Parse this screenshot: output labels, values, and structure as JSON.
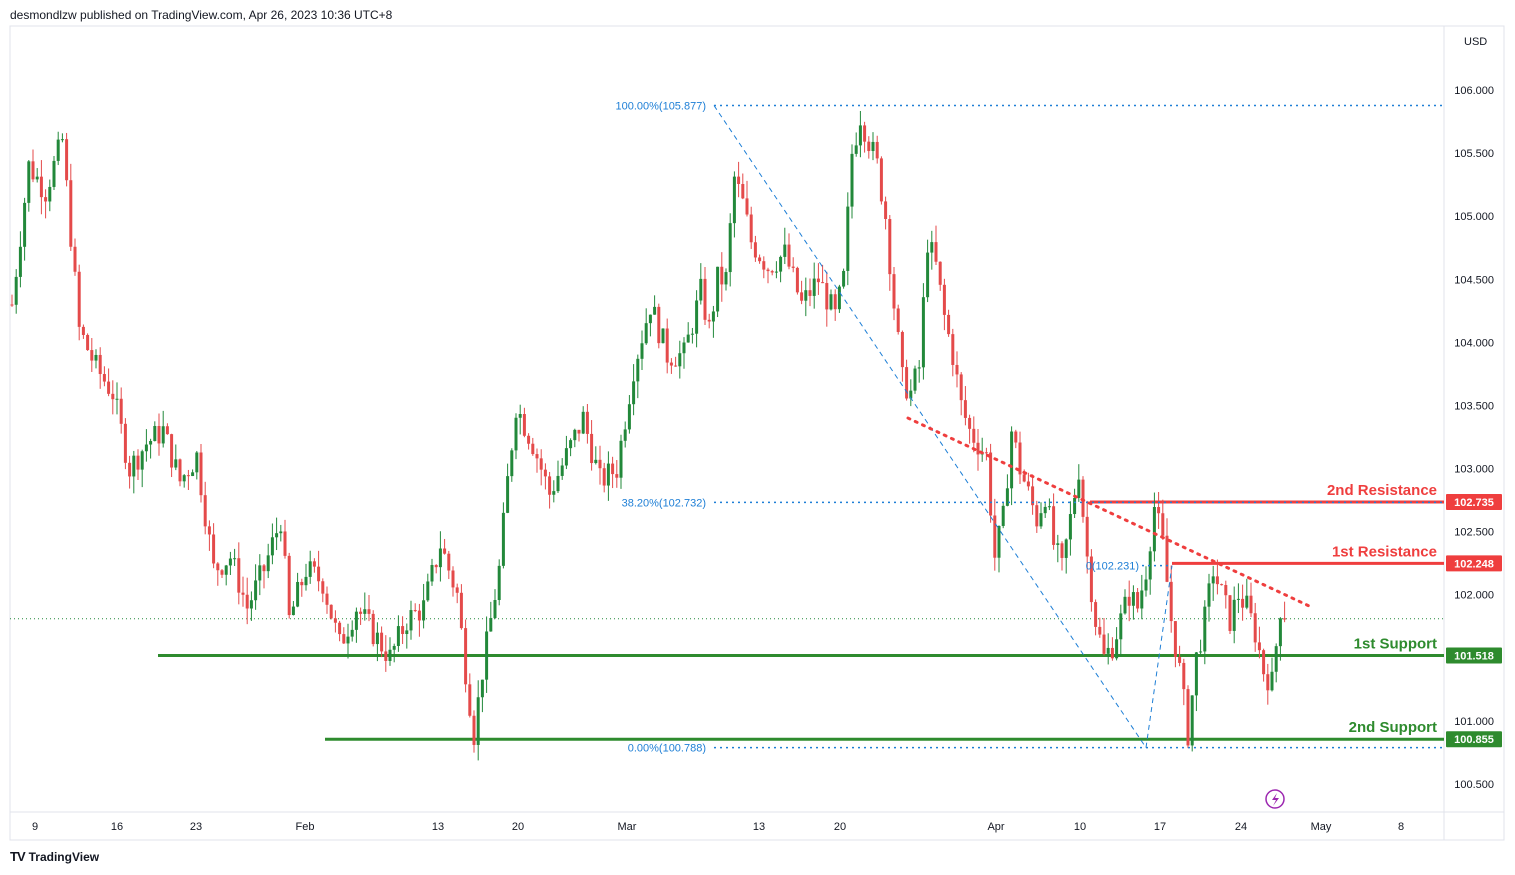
{
  "header": {
    "publisher": "desmondlzw published on TradingView.com, Apr 26, 2023 10:36 UTC+8"
  },
  "footer": {
    "logo_text": "TV",
    "brand": "TradingView"
  },
  "colors": {
    "up": "#22883a",
    "down": "#e44a4a",
    "resistance": "#ef3e3e",
    "support": "#2e8b2e",
    "fib": "#1e7fd6",
    "axis_text": "#131722"
  },
  "chart_data": {
    "type": "candlestick",
    "currency": "USD",
    "ylim": [
      100.25,
      106.4
    ],
    "y_ticks": [
      "106.000",
      "105.500",
      "105.000",
      "104.500",
      "104.000",
      "103.500",
      "103.000",
      "102.500",
      "102.000",
      "101.000",
      "100.500"
    ],
    "x_ticks": [
      "9",
      "16",
      "23",
      "Feb",
      "13",
      "20",
      "Mar",
      "13",
      "20",
      "Apr",
      "10",
      "17",
      "24",
      "May",
      "8"
    ],
    "levels": [
      {
        "label": "2nd Resistance",
        "value": 102.735,
        "value_text": "102.735",
        "kind": "resistance"
      },
      {
        "label": "1st Resistance",
        "value": 102.248,
        "value_text": "102.248",
        "kind": "resistance"
      },
      {
        "label": "1st Support",
        "value": 101.518,
        "value_text": "101.518",
        "kind": "support"
      },
      {
        "label": "2nd Support",
        "value": 100.855,
        "value_text": "100.855",
        "kind": "support"
      }
    ],
    "fib_levels": [
      {
        "label": "100.00%(105.877)",
        "value": 105.877
      },
      {
        "label": "38.20%(102.732)",
        "value": 102.732
      },
      {
        "label": "0(102.231)",
        "value": 102.231
      },
      {
        "label": "0.00%(100.788)",
        "value": 100.788
      }
    ],
    "price_path": [
      [
        0,
        104.3
      ],
      [
        4,
        105.4
      ],
      [
        8,
        105.2
      ],
      [
        12,
        105.6
      ],
      [
        16,
        104.1
      ],
      [
        20,
        103.8
      ],
      [
        24,
        103.6
      ],
      [
        28,
        103.0
      ],
      [
        32,
        103.2
      ],
      [
        36,
        103.3
      ],
      [
        40,
        102.9
      ],
      [
        44,
        103.1
      ],
      [
        48,
        102.2
      ],
      [
        52,
        102.3
      ],
      [
        56,
        101.9
      ],
      [
        60,
        102.2
      ],
      [
        64,
        102.6
      ],
      [
        66,
        101.8
      ],
      [
        70,
        102.2
      ],
      [
        74,
        102.1
      ],
      [
        78,
        101.6
      ],
      [
        82,
        101.9
      ],
      [
        86,
        101.7
      ],
      [
        90,
        101.5
      ],
      [
        94,
        101.8
      ],
      [
        98,
        101.9
      ],
      [
        102,
        102.4
      ],
      [
        106,
        102.0
      ],
      [
        108,
        101.4
      ],
      [
        110,
        100.9
      ],
      [
        112,
        101.4
      ],
      [
        114,
        101.8
      ],
      [
        116,
        102.2
      ],
      [
        118,
        102.9
      ],
      [
        120,
        103.5
      ],
      [
        124,
        103.2
      ],
      [
        128,
        102.8
      ],
      [
        132,
        103.1
      ],
      [
        136,
        103.4
      ],
      [
        140,
        102.9
      ],
      [
        144,
        103.0
      ],
      [
        148,
        103.8
      ],
      [
        152,
        104.3
      ],
      [
        156,
        103.9
      ],
      [
        160,
        103.9
      ],
      [
        164,
        104.4
      ],
      [
        166,
        104.1
      ],
      [
        168,
        104.5
      ],
      [
        170,
        104.5
      ],
      [
        172,
        105.3
      ],
      [
        174,
        105.1
      ],
      [
        176,
        104.8
      ],
      [
        180,
        104.6
      ],
      [
        184,
        104.7
      ],
      [
        188,
        104.3
      ],
      [
        192,
        104.5
      ],
      [
        196,
        104.2
      ],
      [
        198,
        104.5
      ],
      [
        200,
        105.5
      ],
      [
        202,
        105.8
      ],
      [
        204,
        105.6
      ],
      [
        206,
        105.4
      ],
      [
        208,
        105.0
      ],
      [
        210,
        104.3
      ],
      [
        212,
        103.7
      ],
      [
        214,
        103.6
      ],
      [
        216,
        103.8
      ],
      [
        218,
        104.8
      ],
      [
        220,
        104.6
      ],
      [
        222,
        104.2
      ],
      [
        224,
        103.9
      ],
      [
        226,
        103.5
      ],
      [
        228,
        103.3
      ],
      [
        232,
        103.1
      ],
      [
        234,
        102.3
      ],
      [
        236,
        102.6
      ],
      [
        238,
        103.3
      ],
      [
        240,
        103.0
      ],
      [
        242,
        102.8
      ],
      [
        244,
        102.6
      ],
      [
        246,
        102.8
      ],
      [
        248,
        102.4
      ],
      [
        250,
        102.2
      ],
      [
        252,
        102.6
      ],
      [
        254,
        103.0
      ],
      [
        256,
        102.3
      ],
      [
        258,
        101.8
      ],
      [
        260,
        101.5
      ],
      [
        262,
        101.6
      ],
      [
        264,
        101.8
      ],
      [
        266,
        102.0
      ],
      [
        268,
        101.9
      ],
      [
        270,
        102.2
      ],
      [
        272,
        102.7
      ],
      [
        274,
        102.4
      ],
      [
        276,
        101.8
      ],
      [
        278,
        101.4
      ],
      [
        280,
        100.9
      ],
      [
        282,
        101.5
      ],
      [
        284,
        101.8
      ],
      [
        286,
        102.2
      ],
      [
        288,
        102.0
      ],
      [
        290,
        101.8
      ],
      [
        292,
        102.0
      ],
      [
        294,
        101.9
      ],
      [
        296,
        101.7
      ],
      [
        298,
        101.4
      ],
      [
        300,
        101.3
      ],
      [
        302,
        101.9
      ],
      [
        303,
        101.86
      ]
    ]
  }
}
